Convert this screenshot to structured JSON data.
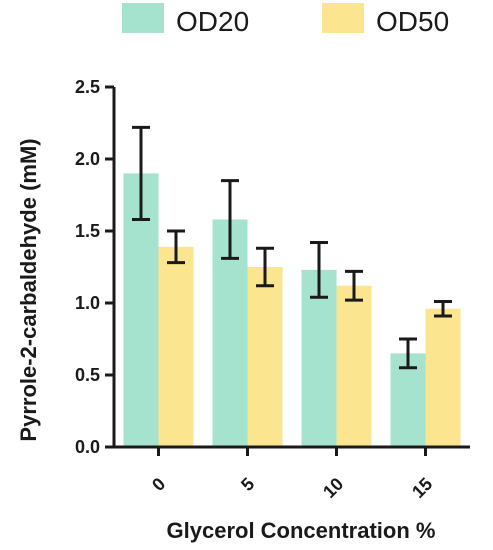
{
  "chart_data": {
    "type": "bar",
    "xlabel": "Glycerol Concentration %",
    "ylabel": "Pyrrole-2-carbaldehyde (mM)",
    "categories": [
      "0",
      "5",
      "10",
      "15"
    ],
    "ylim": [
      0,
      2.5
    ],
    "yticks": [
      "0.0",
      "0.5",
      "1.0",
      "1.5",
      "2.0",
      "2.5"
    ],
    "series": [
      {
        "name": "OD20",
        "color": "#a6e3ce",
        "values": [
          1.9,
          1.58,
          1.23,
          0.65
        ],
        "error": [
          0.32,
          0.27,
          0.19,
          0.1
        ]
      },
      {
        "name": "OD50",
        "color": "#fbe58e",
        "values": [
          1.39,
          1.25,
          1.12,
          0.96
        ],
        "error": [
          0.11,
          0.13,
          0.1,
          0.05
        ]
      }
    ],
    "legend_position": "top"
  }
}
